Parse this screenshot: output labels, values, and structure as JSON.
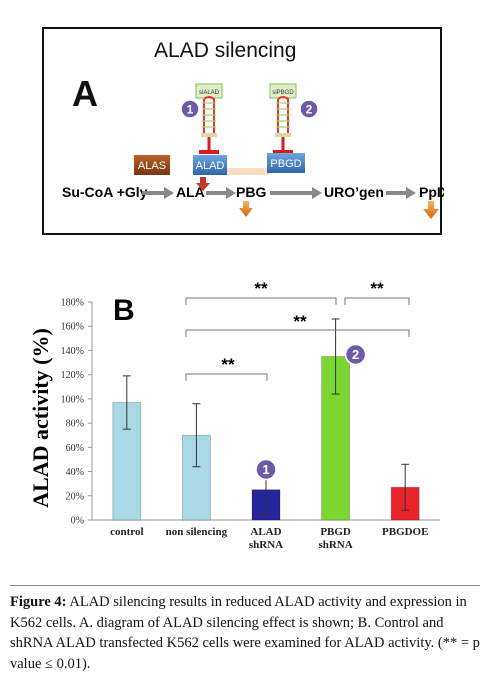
{
  "panelA": {
    "title": "ALAD silencing",
    "letter": "A",
    "shrna_labels": [
      "siALAD",
      "siPBGD"
    ],
    "markers": [
      "1",
      "2"
    ],
    "enzymes": {
      "alas": "ALAS",
      "alad": "ALAD",
      "pbgd": "PBGD"
    },
    "pathway": [
      "Su-CoA +Gly",
      "ALA",
      "PBG",
      "URO’gen",
      "PpIX"
    ],
    "colors": {
      "alas": "#9c4a1e",
      "enzyme": "#3d7ec4",
      "inhibit": "#d81e1e",
      "marker": "#6e5aa8",
      "down_arrow": "#e8821e",
      "up_arrow": "#c0392b"
    }
  },
  "panelB": {
    "letter": "B",
    "sig_labels": [
      "**",
      "**",
      "**",
      "**"
    ]
  },
  "chart_data": {
    "type": "bar",
    "ylabel": "ALAD activity (%)",
    "ylim": [
      0,
      180
    ],
    "yticks": [
      "0%",
      "20%",
      "40%",
      "60%",
      "80%",
      "100%",
      "120%",
      "140%",
      "160%",
      "180%"
    ],
    "categories": [
      [
        "control"
      ],
      [
        "non silencing"
      ],
      [
        "ALAD",
        "shRNA"
      ],
      [
        "PBGD",
        "shRNA"
      ],
      [
        "PBGDOE"
      ]
    ],
    "values": [
      97,
      70,
      25,
      135,
      27
    ],
    "errors": [
      22,
      26,
      20,
      31,
      19
    ],
    "colors": [
      "#a8d8e4",
      "#a8d8e4",
      "#26259b",
      "#7cd632",
      "#e8262a"
    ],
    "markers": [
      null,
      null,
      "1",
      "2",
      null
    ],
    "grid": false
  },
  "caption": {
    "label": "Figure 4:",
    "text": "ALAD silencing results in reduced ALAD activity and expression in K562 cells. A. diagram of ALAD silencing effect is shown; B. Control and shRNA ALAD transfected K562 cells were examined for ALAD activity. (** = p value ≤ 0.01)."
  }
}
